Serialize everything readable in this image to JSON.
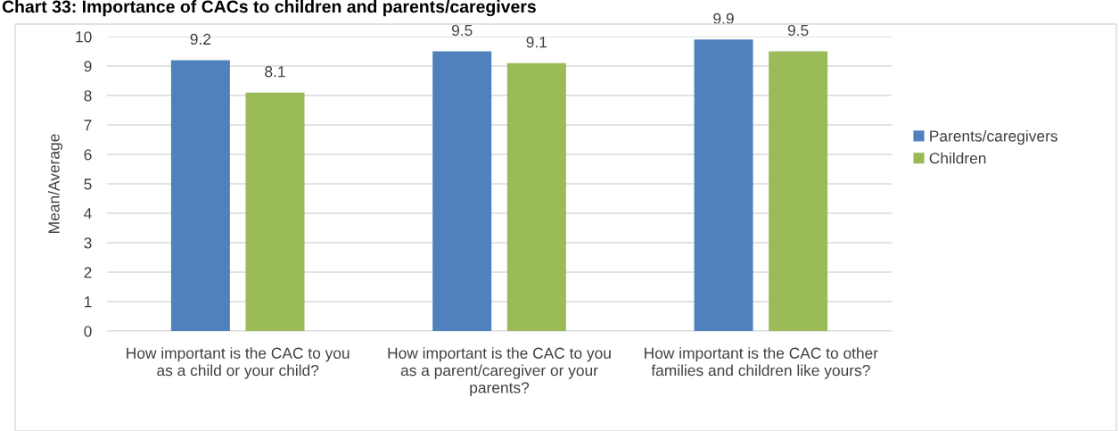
{
  "chart_data": {
    "type": "bar",
    "title": "Chart 33: Importance of CACs to children and parents/caregivers",
    "ylabel": "Mean/Average",
    "categories": [
      "How important is the CAC to you as a child or your child?",
      "How important is the CAC to you as a parent/caregiver or your parents?",
      "How important is the CAC to other families and children like yours?"
    ],
    "series": [
      {
        "name": "Parents/caregivers",
        "color": "#4f81bd",
        "values": [
          9.2,
          9.5,
          9.9
        ]
      },
      {
        "name": "Children",
        "color": "#9bbb59",
        "values": [
          8.1,
          9.1,
          9.5
        ]
      }
    ],
    "ylim": [
      0,
      10
    ],
    "yticks": [
      0,
      1,
      2,
      3,
      4,
      5,
      6,
      7,
      8,
      9,
      10
    ],
    "grid": "y",
    "legend": "right",
    "data_labels": true
  }
}
